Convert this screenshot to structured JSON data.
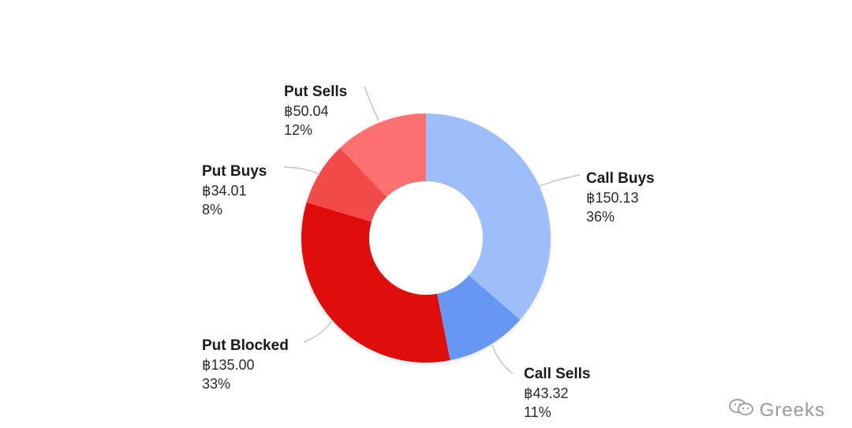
{
  "chart_data": {
    "type": "pie",
    "donut": true,
    "slices": [
      {
        "label": "Call Buys",
        "value": 150.13,
        "value_text": "฿150.13",
        "percent_text": "36%",
        "color": "#9dbdfb"
      },
      {
        "label": "Call Sells",
        "value": 43.32,
        "value_text": "฿43.32",
        "percent_text": "11%",
        "color": "#6698f3"
      },
      {
        "label": "Put Blocked",
        "value": 135.0,
        "value_text": "฿135.00",
        "percent_text": "33%",
        "color": "#e00a0a"
      },
      {
        "label": "Put Buys",
        "value": 34.01,
        "value_text": "฿34.01",
        "percent_text": "8%",
        "color": "#f24a4a"
      },
      {
        "label": "Put Sells",
        "value": 50.04,
        "value_text": "฿50.04",
        "percent_text": "12%",
        "color": "#ff7070"
      }
    ]
  },
  "watermark": {
    "text": "Greeks",
    "icon": "wechat-icon"
  }
}
